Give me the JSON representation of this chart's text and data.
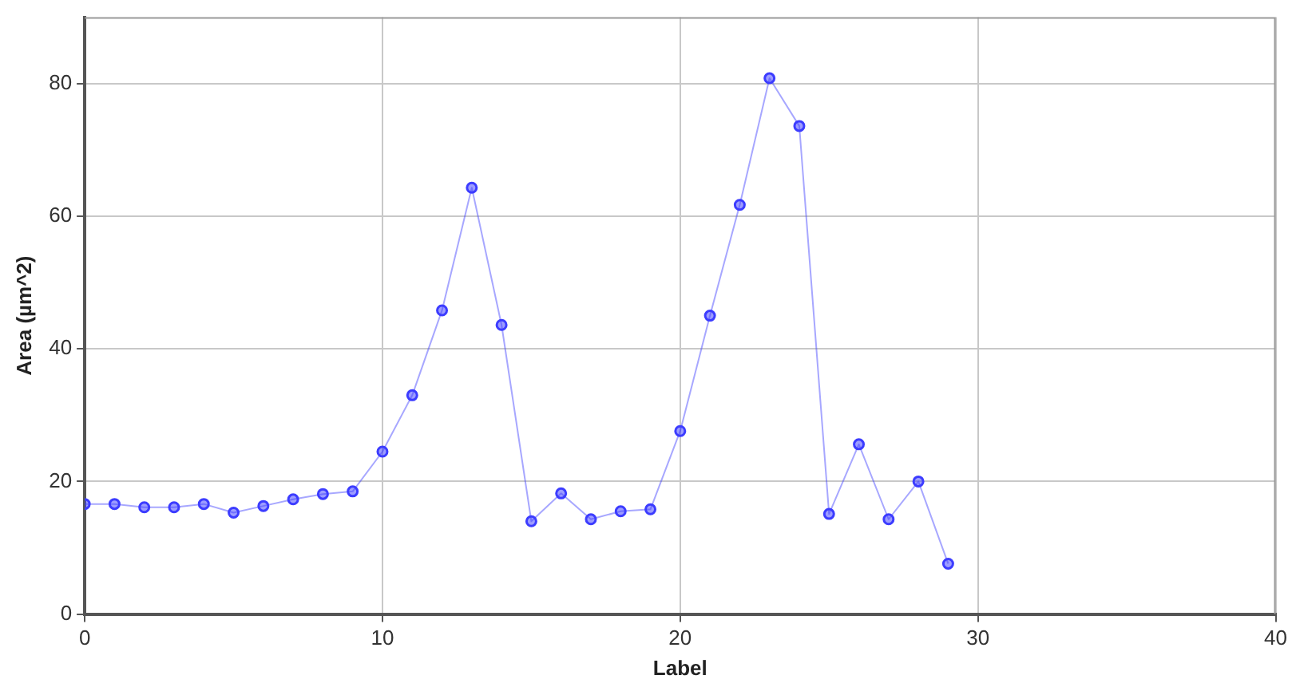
{
  "chart_data": {
    "type": "line",
    "xlabel": "Label",
    "ylabel": "Area (µm^2)",
    "x": [
      0,
      1,
      2,
      3,
      4,
      5,
      6,
      7,
      8,
      9,
      10,
      11,
      12,
      13,
      14,
      15,
      16,
      17,
      18,
      19,
      20,
      21,
      22,
      23,
      24,
      25,
      26,
      27,
      28,
      29
    ],
    "series": [
      {
        "color": "#3c3cff",
        "values": [
          16.6,
          16.6,
          16.1,
          16.1,
          16.6,
          15.3,
          16.3,
          17.3,
          18.1,
          18.5,
          24.5,
          33,
          45.8,
          64.3,
          43.6,
          14,
          18.2,
          14.3,
          15.5,
          15.8,
          27.6,
          45,
          61.7,
          80.8,
          73.6,
          15.1,
          25.6,
          14.3,
          20,
          7.6
        ]
      }
    ],
    "xlim": [
      0,
      40
    ],
    "xticks": [
      0,
      10,
      20,
      30,
      40
    ],
    "ylim": [
      0,
      90
    ],
    "yticks": [
      0,
      20,
      40,
      60,
      80
    ],
    "grid": true,
    "legend": false,
    "marker": "circle",
    "line_style": "solid"
  }
}
